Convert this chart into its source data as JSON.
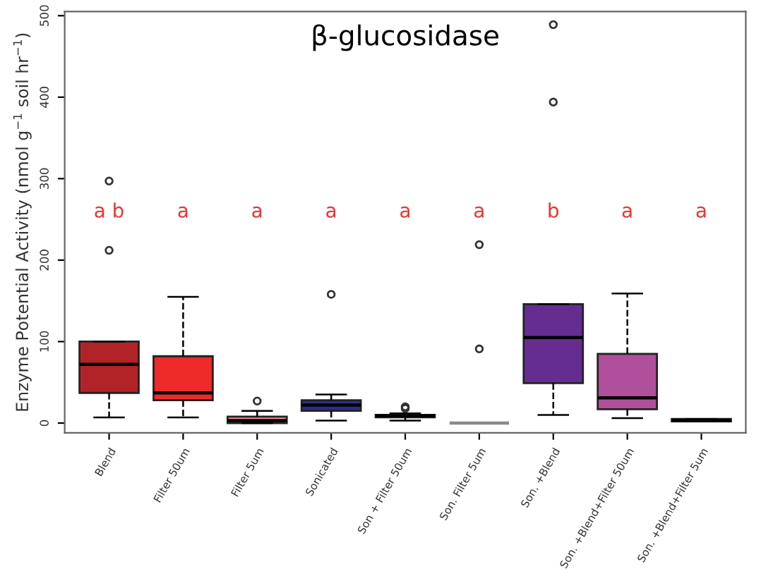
{
  "chart_data": {
    "type": "box",
    "title": "β-glucosidase",
    "ylabel": "Enzyme Potential Activity (nmol g$^{−1}$ soil hr$^{−1}$)",
    "categories": [
      "Blend",
      "Filter 50um",
      "Filter 5um",
      "Sonicated",
      "Son + Filter 50um",
      "Son. Filter 5um",
      "Son. +Blend",
      "Son. +Blend+Filter 50um",
      "Son. +Blend+Filter 5um"
    ],
    "colors": [
      "#b22327",
      "#ee2a2a",
      "#f0889a",
      "#2b2f8a",
      "#8a8a8a",
      "#8a8a8a",
      "#662d91",
      "#b04f9c",
      "#555555"
    ],
    "boxes": [
      {
        "low": 7,
        "q1": 37,
        "median": 72,
        "q3": 100,
        "high": 100,
        "outliers": [
          212,
          297
        ]
      },
      {
        "low": 7,
        "q1": 28,
        "median": 37,
        "q3": 82,
        "high": 155
      },
      {
        "low": 0,
        "q1": 0,
        "median": 3,
        "q3": 8,
        "high": 15,
        "outliers": [
          27
        ]
      },
      {
        "low": 3,
        "q1": 15,
        "median": 22,
        "q3": 28,
        "high": 35,
        "outliers": [
          158
        ]
      },
      {
        "low": 3,
        "q1": 7,
        "median": 9,
        "q3": 10,
        "high": 12,
        "outliers": [
          18,
          20
        ]
      },
      {
        "low": 0,
        "q1": 0,
        "median": 0,
        "q3": 0,
        "high": 0,
        "outliers": [
          91,
          219
        ]
      },
      {
        "low": 10,
        "q1": 49,
        "median": 105,
        "q3": 146,
        "high": 146,
        "outliers": [
          394,
          489
        ]
      },
      {
        "low": 6,
        "q1": 17,
        "median": 31,
        "q3": 85,
        "high": 159
      },
      {
        "low": 2,
        "q1": 2,
        "median": 3,
        "q3": 5,
        "high": 5
      }
    ],
    "ylim": [
      -12,
      505
    ],
    "yticks": [
      0,
      100,
      200,
      300,
      400,
      500
    ],
    "grid": false,
    "annotations": [
      "a b",
      "a",
      "a",
      "a",
      "a",
      "a",
      "b",
      "a",
      "a"
    ]
  }
}
